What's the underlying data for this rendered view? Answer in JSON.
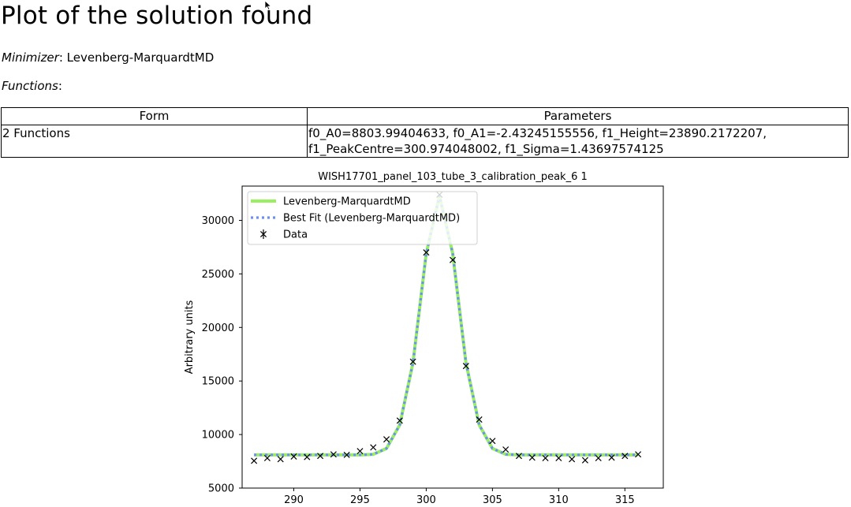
{
  "page": {
    "title": "Plot of the solution found",
    "minimizer_label": "Minimizer",
    "minimizer_value": "Levenberg-MarquardtMD",
    "functions_label": "Functions"
  },
  "table": {
    "headers": [
      "Form",
      "Parameters"
    ],
    "rows": [
      {
        "form": "2 Functions",
        "parameters_line1": "f0_A0=8803.99404633, f0_A1=-2.43245155556, f1_Height=23890.2172207,",
        "parameters_line2": "f1_PeakCentre=300.974048002, f1_Sigma=1.43697574125"
      }
    ]
  },
  "chart_data": {
    "type": "line",
    "title": "WISH17701_panel_103_tube_3_calibration_peak_6 1",
    "xlabel": "",
    "ylabel": "Arbitrary units",
    "xlim": [
      286.1,
      317.9
    ],
    "ylim": [
      5000,
      33200
    ],
    "xticks": [
      290,
      295,
      300,
      305,
      310,
      315
    ],
    "yticks": [
      5000,
      10000,
      15000,
      20000,
      25000,
      30000
    ],
    "legend_position": "top-left",
    "x": [
      287,
      288,
      289,
      290,
      291,
      292,
      293,
      294,
      295,
      296,
      297,
      298,
      299,
      300,
      301,
      302,
      303,
      304,
      305,
      306,
      307,
      308,
      309,
      310,
      311,
      312,
      313,
      314,
      315,
      316
    ],
    "series": [
      {
        "name": "Levenberg-MarquardtMD",
        "style": "solid",
        "color": "#98f061",
        "values": [
          8100,
          8100,
          8100,
          8100,
          8100,
          8100,
          8100,
          8100,
          8100,
          8150,
          8700,
          10900,
          16700,
          26900,
          32300,
          26900,
          16700,
          10900,
          8700,
          8150,
          8100,
          8100,
          8100,
          8100,
          8100,
          8100,
          8100,
          8100,
          8100,
          8100
        ]
      },
      {
        "name": "Best Fit (Levenberg-MarquardtMD)",
        "style": "dotted",
        "color": "#6e8ff2",
        "values": [
          8100,
          8100,
          8100,
          8100,
          8100,
          8100,
          8100,
          8100,
          8100,
          8150,
          8700,
          10900,
          16700,
          26900,
          32300,
          26900,
          16700,
          10900,
          8700,
          8150,
          8100,
          8100,
          8100,
          8100,
          8100,
          8100,
          8100,
          8100,
          8100,
          8100
        ]
      },
      {
        "name": "Data",
        "style": "marker-x",
        "color": "#000000",
        "values": [
          7550,
          7800,
          7700,
          7950,
          7900,
          8000,
          8150,
          8100,
          8450,
          8800,
          9550,
          11300,
          16800,
          27000,
          32400,
          26300,
          16400,
          11400,
          9400,
          8600,
          8000,
          7850,
          7800,
          7800,
          7700,
          7600,
          7800,
          7850,
          8000,
          8150
        ]
      }
    ]
  }
}
